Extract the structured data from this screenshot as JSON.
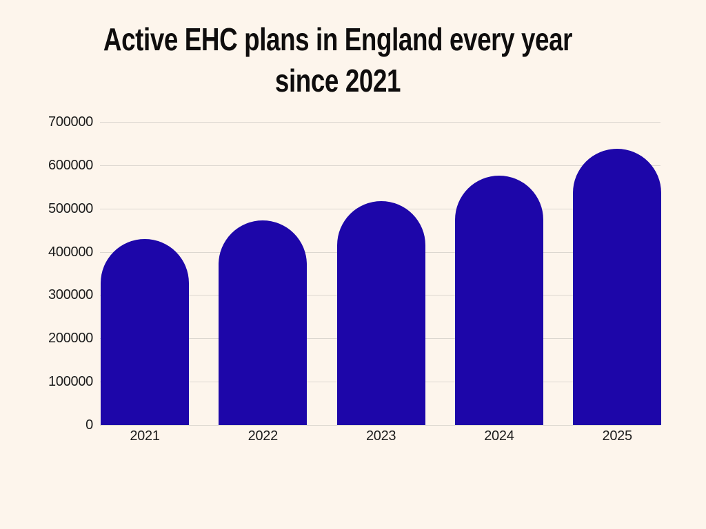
{
  "title": {
    "line1": "Active EHC plans in England every year",
    "line2": "since 2021"
  },
  "chart_data": {
    "type": "bar",
    "title": "Active EHC plans in England every year since 2021",
    "categories": [
      "2021",
      "2022",
      "2023",
      "2024",
      "2025"
    ],
    "values": [
      430000,
      472000,
      517000,
      576000,
      638000
    ],
    "xlabel": "",
    "ylabel": "",
    "ylim": [
      0,
      700000
    ],
    "ytick_interval": 100000,
    "ytick_labels": [
      "0",
      "100000",
      "200000",
      "300000",
      "400000",
      "500000",
      "600000",
      "700000"
    ],
    "grid": "horizontal",
    "legend": "none",
    "bar_color": "#1D06A9",
    "background_color": "#FDF5EC",
    "gridline_color": "#DCD7D0",
    "tick_text_color": "#1C1C1C",
    "title_color": "#0F0D0D"
  }
}
